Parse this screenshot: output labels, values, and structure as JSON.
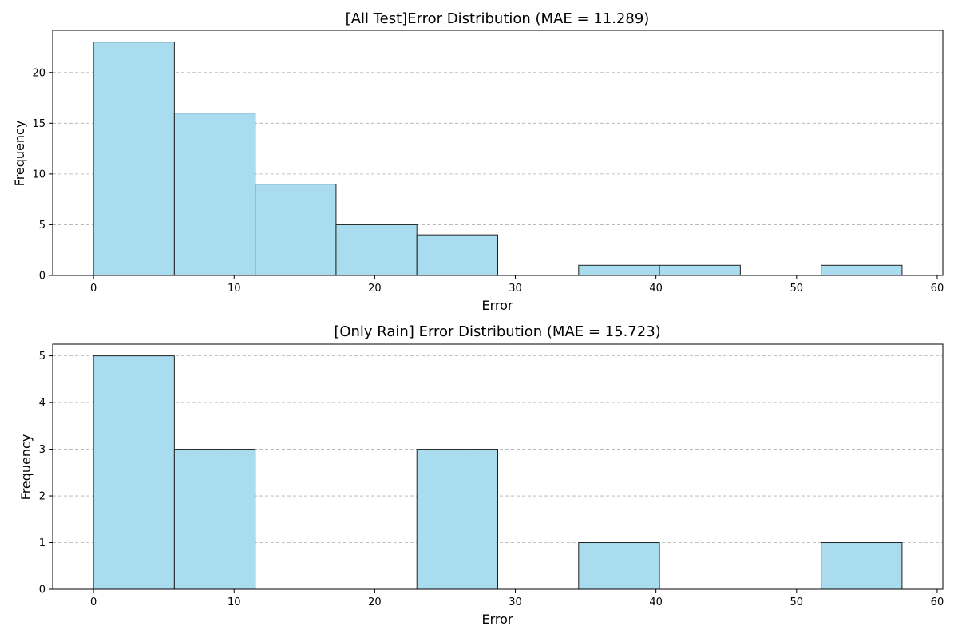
{
  "chart_data": [
    {
      "type": "bar",
      "title": "[All Test]Error Distribution (MAE = 11.289)",
      "xlabel": "Error",
      "ylabel": "Frequency",
      "xlim": [
        -2.9,
        60.4
      ],
      "ylim": [
        0,
        24.15
      ],
      "bin_edges": [
        0.0,
        5.75,
        11.5,
        17.25,
        23.0,
        28.75,
        34.5,
        40.25,
        46.0,
        51.75,
        57.5
      ],
      "values": [
        23,
        16,
        9,
        5,
        4,
        0,
        1,
        1,
        0,
        1
      ],
      "xticks": [
        0,
        10,
        20,
        30,
        40,
        50,
        60
      ],
      "yticks": [
        0,
        5,
        10,
        15,
        20
      ],
      "grid": "y-dashed",
      "bar_color": "#a9dcef",
      "edge_color": "#222222"
    },
    {
      "type": "bar",
      "title": "[Only Rain] Error Distribution (MAE = 15.723)",
      "xlabel": "Error",
      "ylabel": "Frequency",
      "xlim": [
        -2.9,
        60.4
      ],
      "ylim": [
        0,
        5.25
      ],
      "bin_edges": [
        0.0,
        5.75,
        11.5,
        17.25,
        23.0,
        28.75,
        34.5,
        40.25,
        46.0,
        51.75,
        57.5
      ],
      "values": [
        5,
        3,
        0,
        0,
        3,
        0,
        1,
        0,
        0,
        1
      ],
      "xticks": [
        0,
        10,
        20,
        30,
        40,
        50,
        60
      ],
      "yticks": [
        0,
        1,
        2,
        3,
        4,
        5
      ],
      "grid": "y-dashed",
      "bar_color": "#a9dcef",
      "edge_color": "#222222"
    }
  ]
}
